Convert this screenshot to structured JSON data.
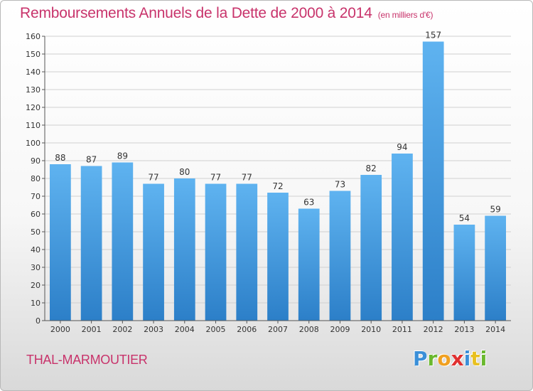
{
  "header": {
    "title": "Remboursements Annuels de la Dette de 2000 à 2014",
    "subtitle": "(en milliers d'€)"
  },
  "footer": {
    "place": "THAL-MARMOUTIER",
    "logo_letters": [
      "P",
      "r",
      "o",
      "x",
      "i",
      "t",
      "i"
    ],
    "logo_colors": [
      "#3a8fd8",
      "#6ab82e",
      "#f0a020",
      "#e03030",
      "#3a8fd8",
      "#e8c020",
      "#6ab82e"
    ]
  },
  "colors": {
    "bar_top": "#5fb3f0",
    "bar_bottom": "#2c7fc8",
    "grid": "#d0d0d0",
    "axis": "#555555",
    "accent": "#c8336b"
  },
  "chart_data": {
    "type": "bar",
    "title": "Remboursements Annuels de la Dette de 2000 à 2014",
    "subtitle": "(en milliers d'€)",
    "xlabel": "",
    "ylabel": "",
    "categories": [
      "2000",
      "2001",
      "2002",
      "2003",
      "2004",
      "2005",
      "2006",
      "2007",
      "2008",
      "2009",
      "2010",
      "2011",
      "2012",
      "2013",
      "2014"
    ],
    "values": [
      88,
      87,
      89,
      77,
      80,
      77,
      77,
      72,
      63,
      73,
      82,
      94,
      157,
      54,
      59
    ],
    "ylim": [
      0,
      160
    ],
    "yticks": [
      0,
      10,
      20,
      30,
      40,
      50,
      60,
      70,
      80,
      90,
      100,
      110,
      120,
      130,
      140,
      150,
      160
    ],
    "grid": true,
    "legend": "none"
  }
}
